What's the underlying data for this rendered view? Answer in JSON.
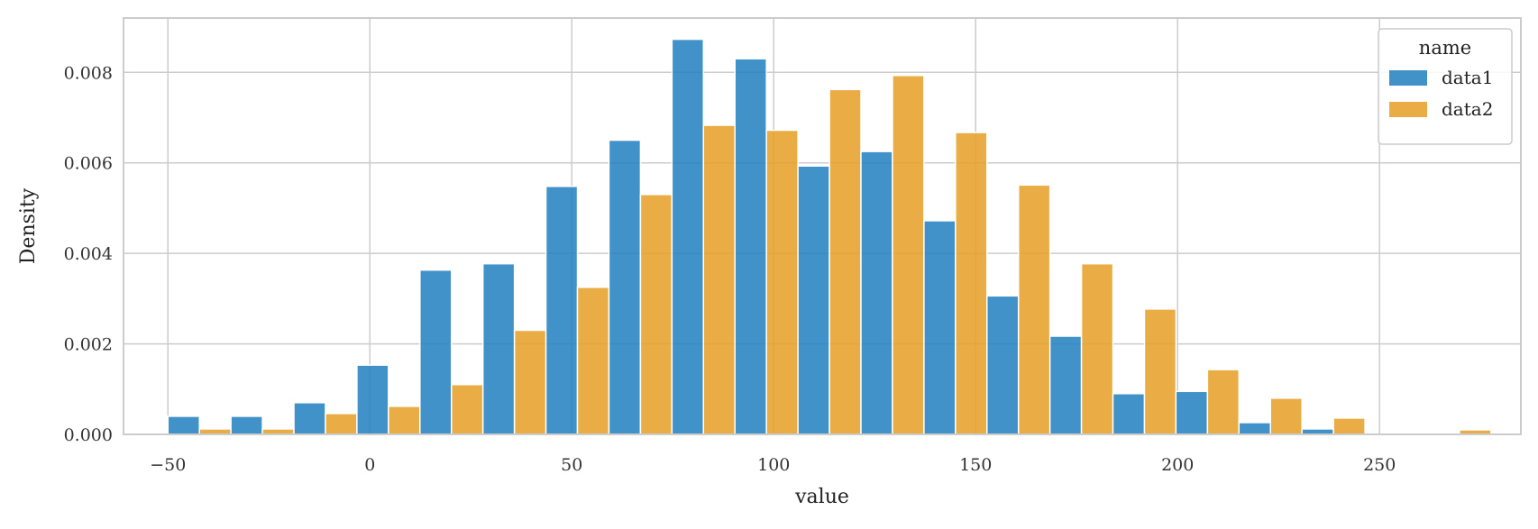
{
  "chart_data": {
    "type": "bar",
    "xlabel": "value",
    "ylabel": "Density",
    "xlim": [
      -61,
      285
    ],
    "ylim": [
      0,
      0.0092
    ],
    "xticks": [
      -50,
      0,
      50,
      100,
      150,
      200,
      250
    ],
    "xtick_labels": [
      "−50",
      "0",
      "50",
      "100",
      "150",
      "200",
      "250"
    ],
    "yticks": [
      0,
      0.002,
      0.004,
      0.006,
      0.008
    ],
    "ytick_labels": [
      "0.000",
      "0.002",
      "0.004",
      "0.006",
      "0.008"
    ],
    "grid": true,
    "legend": {
      "title": "name",
      "placement": "top-right"
    },
    "bin_edges": [
      -50,
      -34.4,
      -18.8,
      -3.2,
      12.4,
      28,
      43.6,
      59.2,
      74.8,
      90.4,
      106,
      121.6,
      137.2,
      152.8,
      168.4,
      184,
      199.6,
      215.2,
      230.8,
      246.4,
      262,
      277.6
    ],
    "series": [
      {
        "name": "data1",
        "color": "#1f7fbf",
        "values": [
          0.0004,
          0.0004,
          0.0007,
          0.00153,
          0.00363,
          0.00377,
          0.00548,
          0.0065,
          0.00873,
          0.0083,
          0.00593,
          0.00625,
          0.00472,
          0.00306,
          0.00217,
          0.0009,
          0.00095,
          0.00026,
          0.00012,
          0,
          0
        ]
      },
      {
        "name": "data2",
        "color": "#e69f25",
        "values": [
          0.00012,
          0.00012,
          0.00046,
          0.00062,
          0.0011,
          0.0023,
          0.00325,
          0.0053,
          0.00683,
          0.00672,
          0.00762,
          0.00793,
          0.00667,
          0.00551,
          0.00377,
          0.00277,
          0.00143,
          0.0008,
          0.00036,
          0,
          0.0001
        ]
      }
    ]
  }
}
